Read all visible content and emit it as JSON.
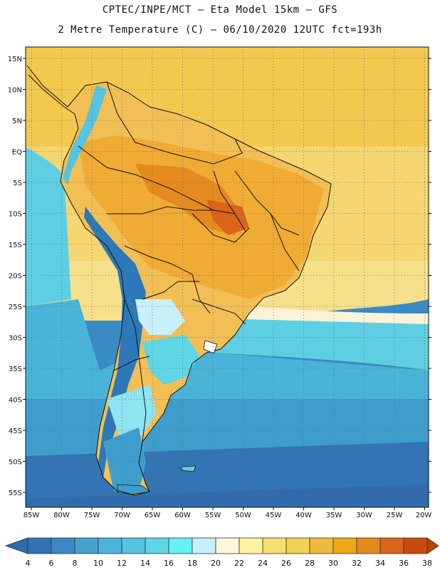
{
  "header": {
    "line1": "CPTEC/INPE/MCT –  Eta Model 15km – GFS",
    "line2": "2 Metre Temperature (C) – 06/10/2020 12UTC fct=193h"
  },
  "map": {
    "lat_labels": [
      "15N",
      "10N",
      "5N",
      "EQ",
      "5S",
      "10S",
      "15S",
      "20S",
      "25S",
      "30S",
      "35S",
      "40S",
      "45S",
      "50S",
      "55S"
    ],
    "lon_labels": [
      "85W",
      "80W",
      "75W",
      "70W",
      "65W",
      "60W",
      "55W",
      "50W",
      "45W",
      "40W",
      "35W",
      "30W",
      "25W",
      "20W"
    ],
    "grid": "dotted",
    "colors": {
      "ocean_north": "#f2c84f",
      "ocean_equator": "#f5d670",
      "land_warm": "#efab34",
      "land_hot": "#e48a1e",
      "andes_cold": "#2c78b8",
      "ocean_south": "#3a8bc5"
    }
  },
  "colorbar": {
    "labels": [
      "4",
      "6",
      "8",
      "10",
      "12",
      "14",
      "16",
      "18",
      "20",
      "22",
      "24",
      "26",
      "28",
      "30",
      "32",
      "34",
      "36",
      "38"
    ],
    "colors": [
      "#3173b6",
      "#3b88c4",
      "#45a1d0",
      "#4cb4db",
      "#55c4e0",
      "#5ed6e6",
      "#64f2f6",
      "#c8f0fa",
      "#fff6dc",
      "#fdf3a0",
      "#f6e06c",
      "#f1d054",
      "#ecbc3c",
      "#f0a818",
      "#e28a1e",
      "#d9641a",
      "#c94a0c"
    ],
    "left_arrow_color": "#2e6cae",
    "right_arrow_color": "#b8400a"
  }
}
